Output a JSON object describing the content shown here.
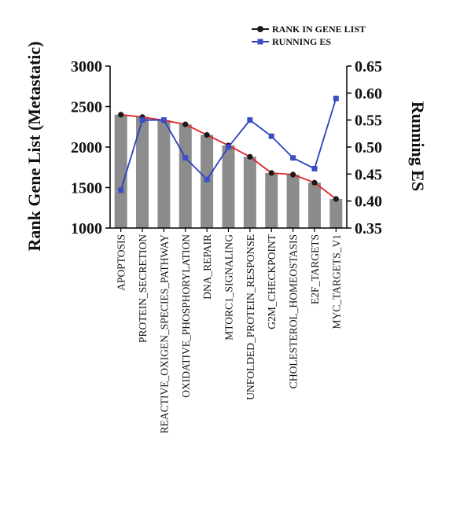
{
  "chart_data": {
    "type": "bar",
    "categories": [
      "APOPTOSIS",
      "PROTEIN_SECRETION",
      "REACTIVE_OXIGEN_SPECIES_PATHWAY",
      "OXIDATIVE_PHOSPHORYLATION",
      "DNA_REPAIR",
      "MTORC1_SIGNALING",
      "UNFOLDED_PROTEIN_RESPONSE",
      "G2M_CHECKPOINT",
      "CHOLESTEROL_HOMEOSTASIS",
      "E2F_TARGETS",
      "MYC_TARGETS_V1"
    ],
    "series": [
      {
        "name": "RANK IN GENE LIST",
        "axis": "left",
        "kind": "bar+line",
        "bar_color": "#8c8c8c",
        "line_color": "#e02020",
        "marker_color": "#1a1a1a",
        "values": [
          2400,
          2370,
          2330,
          2280,
          2150,
          2020,
          1880,
          1680,
          1660,
          1560,
          1360
        ]
      },
      {
        "name": "RUNNING ES",
        "axis": "right",
        "kind": "line",
        "line_color": "#2b3fbf",
        "marker_color": "#3a4fc4",
        "values": [
          0.42,
          0.55,
          0.55,
          0.48,
          0.44,
          0.5,
          0.55,
          0.52,
          0.48,
          0.46,
          0.59
        ]
      }
    ],
    "ylabel": "Rank Gene List (Metastatic)",
    "ylim": [
      1000,
      3000
    ],
    "yticks": [
      "1000",
      "1500",
      "2000",
      "2500",
      "3000"
    ],
    "y2label": "Running ES",
    "y2lim": [
      0.35,
      0.65
    ],
    "y2ticks": [
      "0.35",
      "0.40",
      "0.45",
      "0.50",
      "0.55",
      "0.60",
      "0.65"
    ],
    "legend_position": "top-right",
    "grid": false
  }
}
